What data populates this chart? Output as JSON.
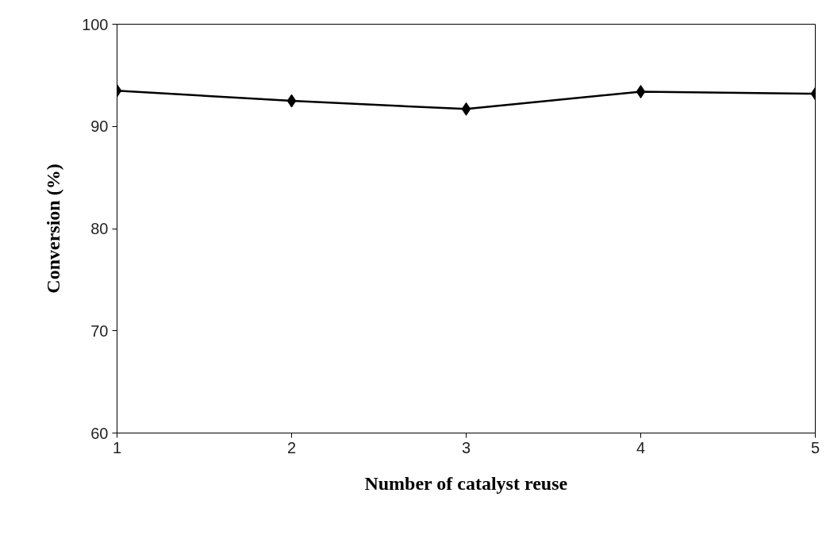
{
  "chart_data": {
    "type": "line",
    "xlabel": "Number of catalyst reuse",
    "ylabel": "Conversion (%)",
    "x": [
      1,
      2,
      3,
      4,
      5
    ],
    "series": [
      {
        "color": "#000000",
        "values": [
          93.5,
          92.5,
          91.7,
          93.4,
          93.2
        ]
      }
    ],
    "xlim": [
      1,
      5
    ],
    "xticks": [
      1,
      2,
      3,
      4,
      5
    ],
    "ylim": [
      60,
      100
    ],
    "yticks": [
      60,
      70,
      80,
      90,
      100
    ],
    "grid": false,
    "marker": "diamond",
    "line_style": "solid"
  }
}
